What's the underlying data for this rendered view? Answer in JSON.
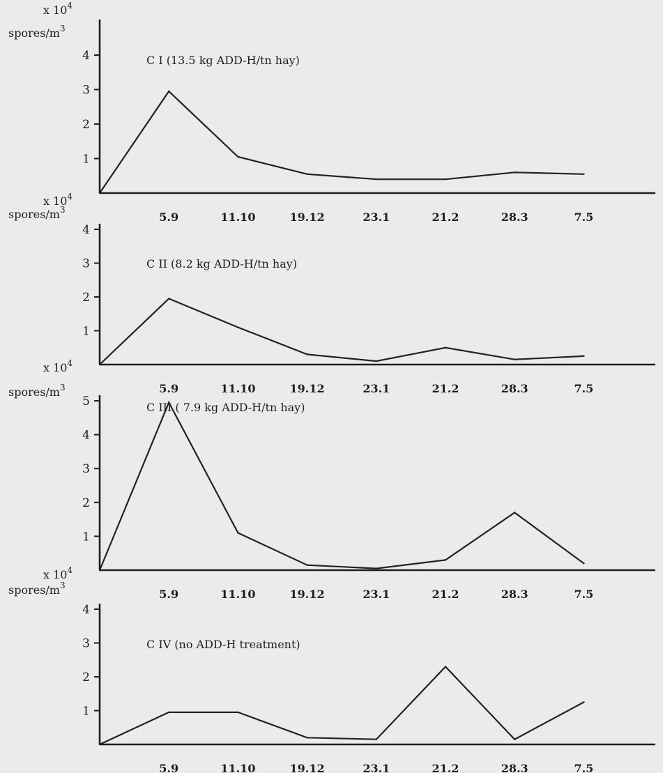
{
  "chart_data": [
    {
      "type": "line",
      "title": "C I (13.5 kg ADD-H/tn hay)",
      "unit_line1": "x 10",
      "unit_exp": "4",
      "unit_line2": "spores/m",
      "unit_exp2": "3",
      "ylim": [
        0,
        4
      ],
      "yticks": [
        "1",
        "2",
        "3",
        "4"
      ],
      "categories": [
        "5.9",
        "11.10",
        "19.12",
        "23.1",
        "21.2",
        "28.3",
        "7.5"
      ],
      "x": [
        0,
        1,
        2,
        3,
        4,
        5,
        6,
        7
      ],
      "values": [
        0,
        2.95,
        1.05,
        0.55,
        0.4,
        0.4,
        0.6,
        0.55
      ],
      "grid": false
    },
    {
      "type": "line",
      "title": "C II (8.2 kg ADD-H/tn hay)",
      "unit_line1": "x 10",
      "unit_exp": "4",
      "unit_line2": "spores/m",
      "unit_exp2": "3",
      "ylim": [
        0,
        4
      ],
      "yticks": [
        "1",
        "2",
        "3",
        "4"
      ],
      "categories": [
        "5.9",
        "11.10",
        "19.12",
        "23.1",
        "21.2",
        "28.3",
        "7.5"
      ],
      "x": [
        0,
        1,
        2,
        3,
        4,
        5,
        6,
        7
      ],
      "values": [
        0,
        1.95,
        1.1,
        0.3,
        0.1,
        0.5,
        0.15,
        0.25
      ],
      "grid": false
    },
    {
      "type": "line",
      "title": "C III ( 7.9 kg ADD-H/tn hay)",
      "unit_line1": "x 10",
      "unit_exp": "4",
      "unit_line2": "spores/m",
      "unit_exp2": "3",
      "ylim": [
        0,
        5
      ],
      "yticks": [
        "1",
        "2",
        "3",
        "4",
        "5"
      ],
      "categories": [
        "5.9",
        "11.10",
        "19.12",
        "23.1",
        "21.2",
        "28.3",
        "7.5"
      ],
      "x": [
        0,
        1,
        2,
        3,
        4,
        5,
        6,
        7
      ],
      "values": [
        0,
        4.95,
        1.1,
        0.15,
        0.05,
        0.3,
        1.7,
        0.2
      ],
      "grid": false
    },
    {
      "type": "line",
      "title": "C IV (no ADD-H treatment)",
      "unit_line1": "x 10",
      "unit_exp": "4",
      "unit_line2": "spores/m",
      "unit_exp2": "3",
      "ylim": [
        0,
        4
      ],
      "yticks": [
        "1",
        "2",
        "3",
        "4"
      ],
      "categories": [
        "5.9",
        "11.10",
        "19.12",
        "23.1",
        "21.2",
        "28.3",
        "7.5"
      ],
      "x": [
        0,
        1,
        2,
        3,
        4,
        5,
        6,
        7
      ],
      "values": [
        0,
        0.95,
        0.95,
        0.2,
        0.15,
        2.3,
        0.15,
        1.25
      ],
      "grid": false
    }
  ]
}
